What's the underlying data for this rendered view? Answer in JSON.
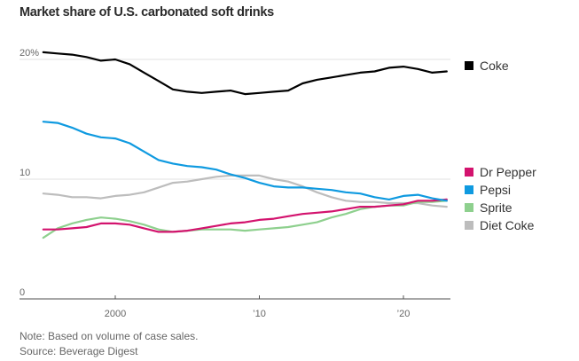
{
  "chart_data": {
    "type": "line",
    "title": "Market share of U.S. carbonated soft drinks",
    "xlabel": "",
    "ylabel": "",
    "ylim": [
      0,
      21
    ],
    "xlim": [
      1994.9,
      2023.3
    ],
    "y_ticks": [
      {
        "value": 0,
        "label": "0"
      },
      {
        "value": 10,
        "label": "10"
      },
      {
        "value": 20,
        "label": "20%"
      }
    ],
    "x_ticks": [
      {
        "value": 2000,
        "label": "2000"
      },
      {
        "value": 2010,
        "label": "’10"
      },
      {
        "value": 2020,
        "label": "’20"
      }
    ],
    "grid": true,
    "legend_placement": "right",
    "x": [
      1995,
      1996,
      1997,
      1998,
      1999,
      2000,
      2001,
      2002,
      2003,
      2004,
      2005,
      2006,
      2007,
      2008,
      2009,
      2010,
      2011,
      2012,
      2013,
      2014,
      2015,
      2016,
      2017,
      2018,
      2019,
      2020,
      2021,
      2022,
      2023
    ],
    "series": [
      {
        "name": "Coke",
        "color": "#000000",
        "values": [
          20.6,
          20.5,
          20.4,
          20.2,
          19.9,
          20.0,
          19.6,
          18.9,
          18.2,
          17.5,
          17.3,
          17.2,
          17.3,
          17.4,
          17.1,
          17.2,
          17.3,
          17.4,
          18.0,
          18.3,
          18.5,
          18.7,
          18.9,
          19.0,
          19.3,
          19.4,
          19.2,
          18.9,
          19.0
        ]
      },
      {
        "name": "Pepsi",
        "color": "#0f9ae0",
        "values": [
          14.8,
          14.7,
          14.3,
          13.8,
          13.5,
          13.4,
          13.0,
          12.3,
          11.6,
          11.3,
          11.1,
          11.0,
          10.8,
          10.4,
          10.1,
          9.7,
          9.4,
          9.3,
          9.3,
          9.2,
          9.1,
          8.9,
          8.8,
          8.5,
          8.3,
          8.6,
          8.7,
          8.4,
          8.2
        ]
      },
      {
        "name": "Dr Pepper",
        "color": "#d3136e",
        "values": [
          5.8,
          5.8,
          5.9,
          6.0,
          6.3,
          6.3,
          6.2,
          5.9,
          5.6,
          5.6,
          5.7,
          5.9,
          6.1,
          6.3,
          6.4,
          6.6,
          6.7,
          6.9,
          7.1,
          7.2,
          7.3,
          7.5,
          7.7,
          7.7,
          7.8,
          7.9,
          8.2,
          8.2,
          8.3
        ]
      },
      {
        "name": "Sprite",
        "color": "#8ed08e",
        "values": [
          5.1,
          5.9,
          6.3,
          6.6,
          6.8,
          6.7,
          6.5,
          6.2,
          5.8,
          5.6,
          5.7,
          5.8,
          5.8,
          5.8,
          5.7,
          5.8,
          5.9,
          6.0,
          6.2,
          6.4,
          6.8,
          7.1,
          7.5,
          7.7,
          7.8,
          7.8,
          8.1,
          8.1,
          8.2
        ]
      },
      {
        "name": "Diet Coke",
        "color": "#bdbdbd",
        "values": [
          8.8,
          8.7,
          8.5,
          8.5,
          8.4,
          8.6,
          8.7,
          8.9,
          9.3,
          9.7,
          9.8,
          10.0,
          10.2,
          10.3,
          10.3,
          10.3,
          10.0,
          9.8,
          9.4,
          8.9,
          8.5,
          8.2,
          8.1,
          8.1,
          8.0,
          8.0,
          8.0,
          7.8,
          7.7
        ]
      }
    ],
    "legend": [
      {
        "name": "Coke",
        "color": "#000000",
        "anchor_value": 19.0
      },
      {
        "name": "Dr Pepper",
        "color": "#d3136e"
      },
      {
        "name": "Pepsi",
        "color": "#0f9ae0"
      },
      {
        "name": "Sprite",
        "color": "#8ed08e"
      },
      {
        "name": "Diet Coke",
        "color": "#bdbdbd"
      }
    ]
  },
  "footer": {
    "note": "Note: Based on volume of case sales.",
    "source": "Source: Beverage Digest"
  }
}
